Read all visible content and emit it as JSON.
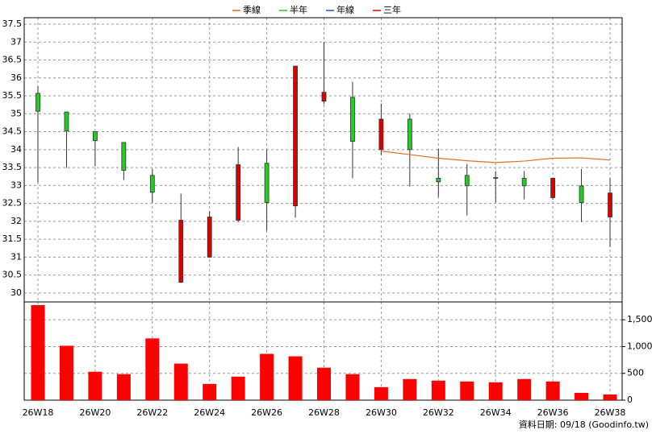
{
  "chart_data": {
    "type": "candlestick",
    "categories": [
      "26W18",
      null,
      "26W20",
      null,
      "26W22",
      null,
      "26W24",
      null,
      "26W26",
      null,
      "26W28",
      null,
      "26W30",
      null,
      "26W32",
      null,
      "26W34",
      null,
      "26W36",
      null,
      "26W38"
    ],
    "candles": {
      "up_color": "#dd0000",
      "down_color": "#22cc22",
      "open": [
        35.57,
        35.05,
        34.5,
        34.2,
        33.28,
        30.3,
        31.0,
        32.03,
        33.62,
        32.43,
        35.35,
        35.46,
        34.0,
        34.85,
        33.2,
        33.28,
        33.22,
        33.2,
        32.66,
        32.99,
        32.12
      ],
      "high": [
        35.77,
        35.05,
        34.5,
        34.2,
        33.46,
        32.77,
        32.28,
        34.07,
        34.0,
        36.33,
        37.0,
        35.89,
        35.28,
        35.01,
        34.02,
        33.6,
        33.4,
        33.4,
        33.2,
        33.46,
        33.2
      ],
      "low": [
        33.08,
        33.49,
        33.53,
        33.15,
        32.52,
        30.28,
        30.98,
        31.98,
        31.74,
        32.1,
        35.28,
        33.2,
        33.85,
        32.97,
        32.68,
        32.16,
        32.52,
        32.61,
        32.6,
        31.98,
        31.29
      ],
      "close": [
        35.07,
        34.52,
        34.25,
        33.42,
        32.81,
        32.03,
        32.12,
        33.58,
        32.52,
        36.33,
        35.6,
        34.23,
        34.85,
        34.0,
        33.1,
        32.99,
        33.2,
        32.99,
        33.2,
        32.52,
        32.79
      ]
    },
    "series": [
      {
        "name": "季線",
        "color": "#e07020",
        "values": [
          null,
          null,
          null,
          null,
          null,
          null,
          null,
          null,
          null,
          null,
          null,
          null,
          33.96,
          33.86,
          33.76,
          33.69,
          33.64,
          33.68,
          33.76,
          33.77,
          33.71
        ]
      },
      {
        "name": "半年",
        "color": "#22cc22",
        "values": [
          null,
          null,
          null,
          null,
          null,
          null,
          null,
          null,
          null,
          null,
          null,
          null,
          null,
          null,
          null,
          null,
          null,
          null,
          null,
          null,
          null
        ]
      },
      {
        "name": "年線",
        "color": "#2050d0",
        "values": [
          null,
          null,
          null,
          null,
          null,
          null,
          null,
          null,
          null,
          null,
          null,
          null,
          null,
          null,
          null,
          null,
          null,
          null,
          null,
          null,
          null
        ]
      },
      {
        "name": "三年",
        "color": "#dd0000",
        "values": [
          null,
          null,
          null,
          null,
          null,
          null,
          null,
          null,
          null,
          null,
          null,
          null,
          null,
          null,
          null,
          null,
          null,
          null,
          null,
          null,
          null
        ]
      }
    ],
    "ylim": [
      29.75,
      37.68
    ],
    "yticks": [
      30,
      30.5,
      31,
      31.5,
      32,
      32.5,
      33,
      33.5,
      34,
      34.5,
      35,
      35.5,
      36,
      36.5,
      37,
      37.5
    ],
    "volume": {
      "color": "#ff0000",
      "values": [
        1773,
        1015,
        530,
        485,
        1152,
        682,
        303,
        439,
        864,
        818,
        606,
        485,
        242,
        394,
        364,
        348,
        333,
        394,
        348,
        136,
        106
      ]
    },
    "y2lim": [
      0,
      1833
    ],
    "y2ticks": [
      0,
      500,
      {
        "value": 1000,
        "label": "1,000"
      },
      {
        "value": 1500,
        "label": "1,500"
      }
    ],
    "grid": true,
    "legend": "top",
    "annotation": "資料日期: 09/18  (Goodinfo.tw)"
  }
}
